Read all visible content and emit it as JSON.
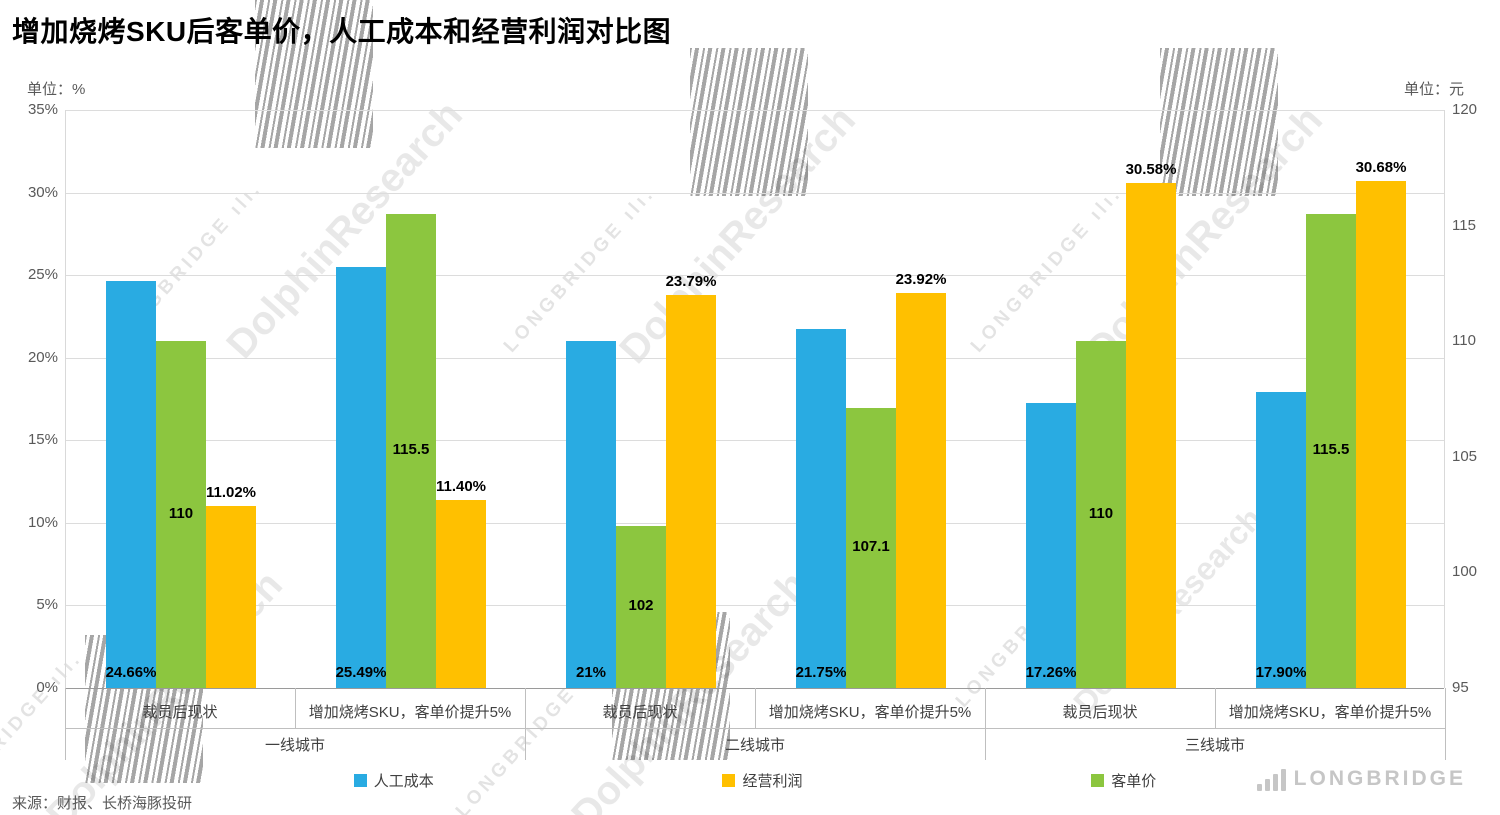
{
  "title": "增加烧烤SKU后客单价，人工成本和经营利润对比图",
  "left_axis": {
    "unit_label": "单位：%",
    "tick_labels": [
      "35%",
      "30%",
      "25%",
      "20%",
      "15%",
      "10%",
      "5%",
      "0%"
    ],
    "min": 0,
    "max": 35
  },
  "right_axis": {
    "unit_label": "单位：元",
    "tick_labels": [
      "120",
      "115",
      "110",
      "105",
      "100",
      "95"
    ],
    "min": 95,
    "max": 120
  },
  "x_axis": {
    "city_groups": [
      {
        "label": "一线城市",
        "items": [
          "裁员后现状",
          "增加烧烤SKU，客单价提升5%"
        ]
      },
      {
        "label": "二线城市",
        "items": [
          "裁员后现状",
          "增加烧烤SKU，客单价提升5%"
        ]
      },
      {
        "label": "三线城市",
        "items": [
          "裁员后现状",
          "增加烧烤SKU，客单价提升5%"
        ]
      }
    ]
  },
  "chart_data": {
    "type": "bar",
    "categories": [
      "一线城市 裁员后现状",
      "一线城市 增加烧烤SKU，客单价提升5%",
      "二线城市 裁员后现状",
      "二线城市 增加烧烤SKU，客单价提升5%",
      "三线城市 裁员后现状",
      "三线城市 增加烧烤SKU，客单价提升5%"
    ],
    "left_ylim": [
      0,
      35
    ],
    "right_ylim": [
      95,
      120
    ],
    "grid": true,
    "legend_position": "bottom",
    "series": [
      {
        "name": "人工成本",
        "axis": "left",
        "color": "#29abe2",
        "values": [
          24.66,
          25.49,
          21,
          21.75,
          17.26,
          17.9
        ],
        "labels": [
          "24.66%",
          "25.49%",
          "21%",
          "21.75%",
          "17.26%",
          "17.90%"
        ],
        "label_position": "inside-bottom"
      },
      {
        "name": "客单价",
        "axis": "right",
        "color": "#8cc63f",
        "values": [
          110,
          115.5,
          102,
          107.1,
          110,
          115.5
        ],
        "labels": [
          "110",
          "115.5",
          "102",
          "107.1",
          "110",
          "115.5"
        ],
        "label_position": "inside-middle"
      },
      {
        "name": "经营利润",
        "axis": "left",
        "color": "#ffc000",
        "values": [
          11.02,
          11.4,
          23.79,
          23.92,
          30.58,
          30.68
        ],
        "labels": [
          "11.02%",
          "11.40%",
          "23.79%",
          "23.92%",
          "30.58%",
          "30.68%"
        ],
        "label_position": "above"
      }
    ]
  },
  "legend": [
    {
      "label": "人工成本",
      "color": "#29abe2"
    },
    {
      "label": "经营利润",
      "color": "#ffc000"
    },
    {
      "label": "客单价",
      "color": "#8cc63f"
    }
  ],
  "watermark": {
    "brand": "LONGBRIDGE",
    "research": "DolphinResearch"
  },
  "source": "来源：财报、长桥海豚投研",
  "logo": {
    "text": "LONGBRIDGE"
  }
}
